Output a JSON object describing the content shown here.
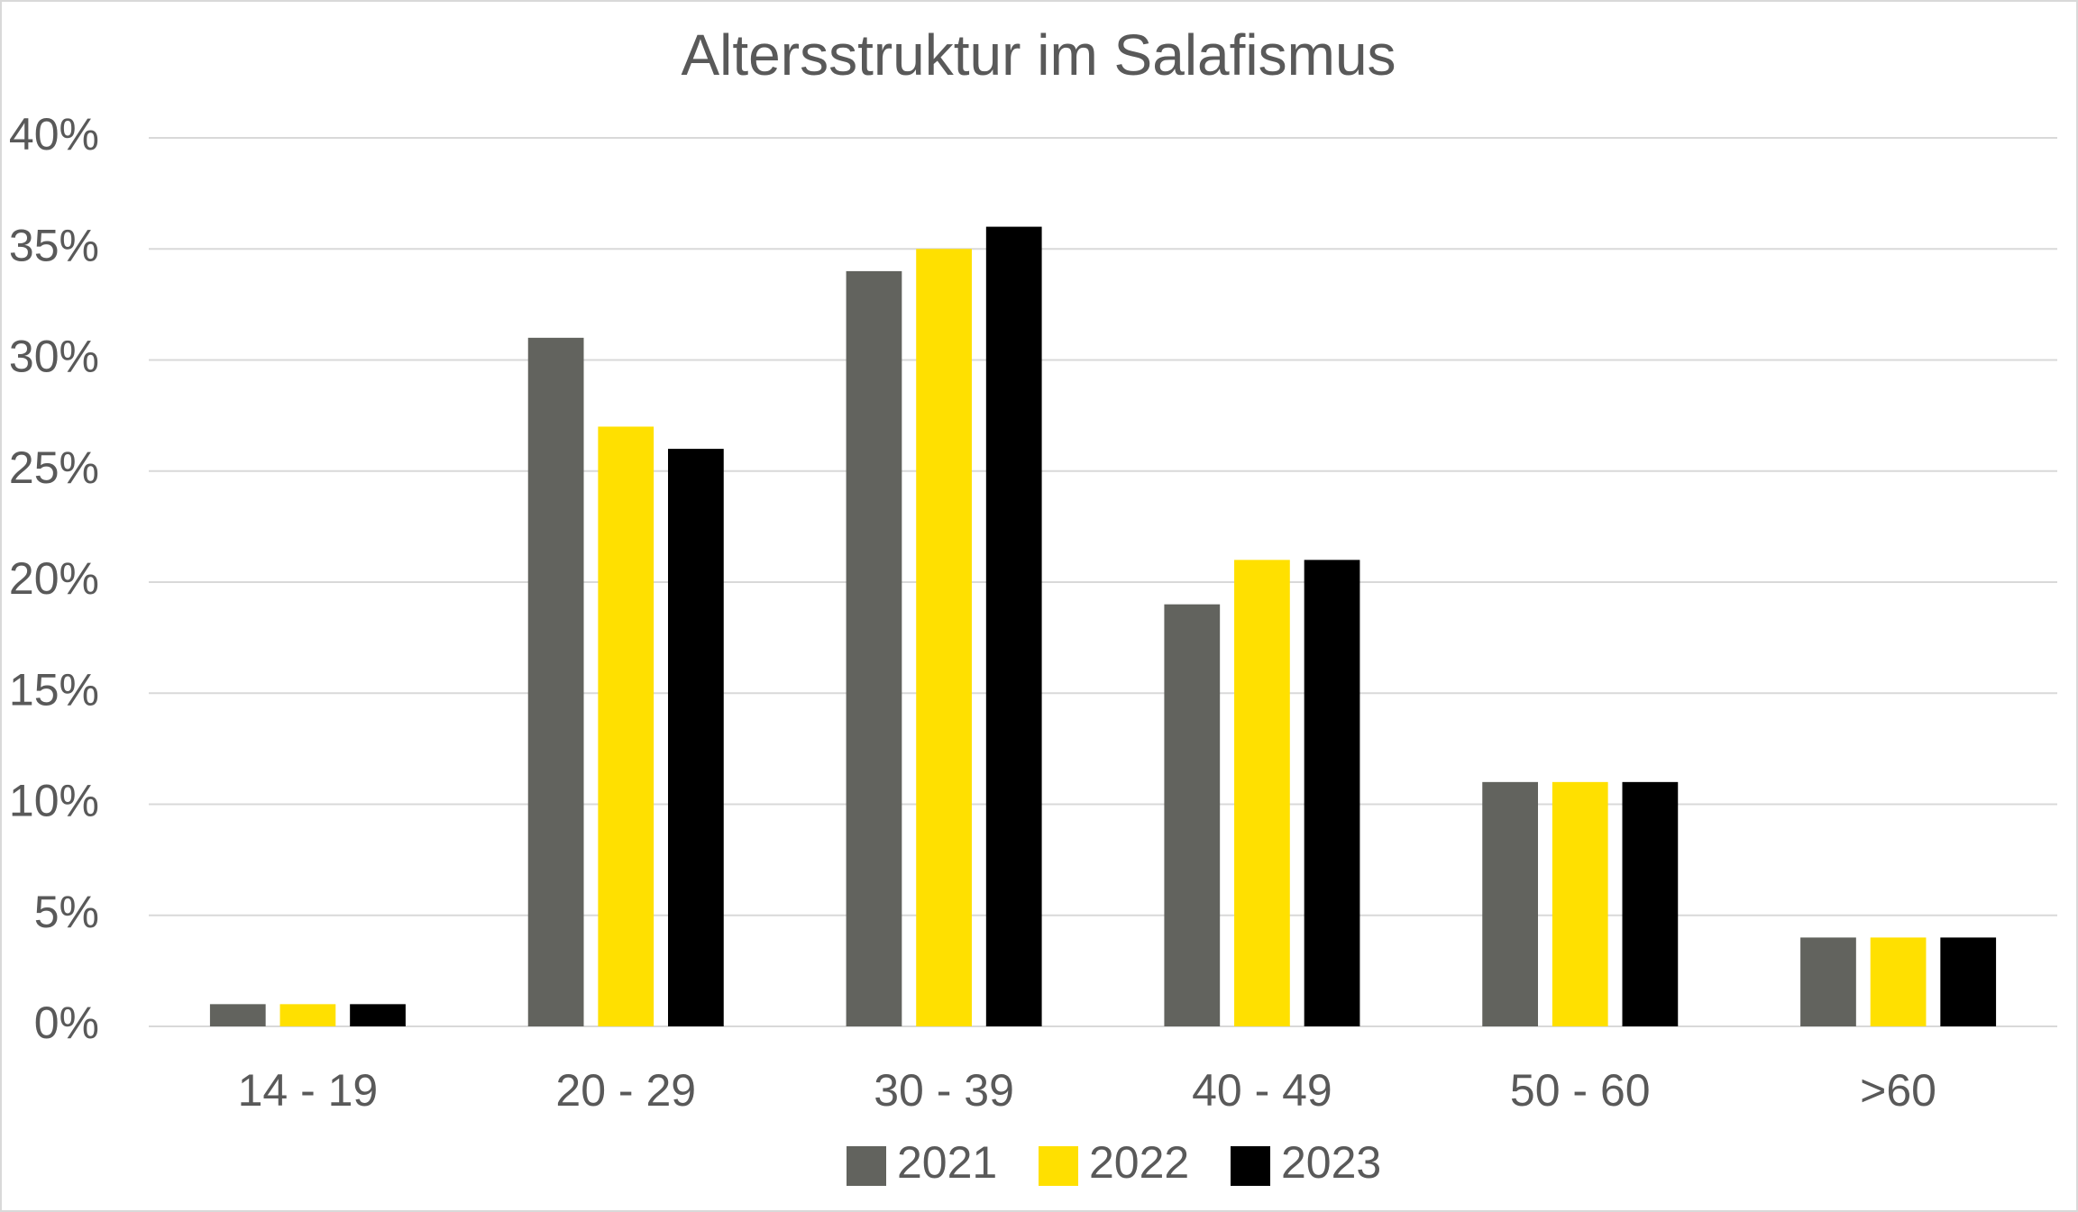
{
  "chart_data": {
    "type": "bar",
    "title": "Altersstruktur im Salafismus",
    "categories": [
      "14 - 19",
      "20 - 29",
      "30 - 39",
      "40 - 49",
      "50 - 60",
      ">60"
    ],
    "series": [
      {
        "name": "2021",
        "color": "#62635e",
        "values": [
          1,
          31,
          34,
          19,
          11,
          4
        ]
      },
      {
        "name": "2022",
        "color": "#ffe000",
        "values": [
          1,
          27,
          35,
          21,
          11,
          4
        ]
      },
      {
        "name": "2023",
        "color": "#000000",
        "values": [
          1,
          26,
          36,
          21,
          11,
          4
        ]
      }
    ],
    "ylim": [
      0,
      40
    ],
    "yticks": [
      {
        "value": 0,
        "label": "0%"
      },
      {
        "value": 5,
        "label": "5%"
      },
      {
        "value": 10,
        "label": "10%"
      },
      {
        "value": 15,
        "label": "15%"
      },
      {
        "value": 20,
        "label": "20%"
      },
      {
        "value": 25,
        "label": "25%"
      },
      {
        "value": 30,
        "label": "30%"
      },
      {
        "value": 35,
        "label": "35%"
      },
      {
        "value": 40,
        "label": "40%"
      }
    ],
    "grid": true,
    "legend": "bottom"
  }
}
